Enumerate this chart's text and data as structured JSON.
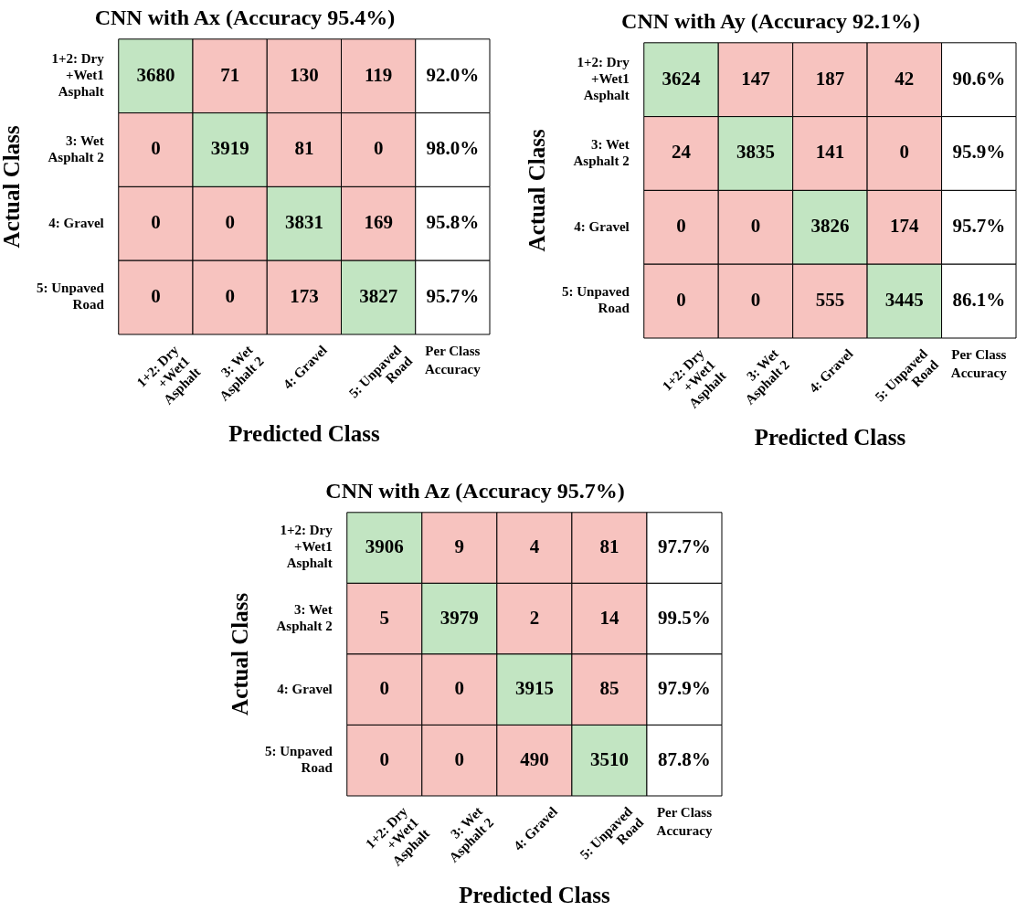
{
  "chart_data": [
    {
      "type": "heatmap",
      "title": "CNN with Ax (Accuracy 95.4%)",
      "xlabel": "Predicted Class",
      "ylabel": "Actual Class",
      "categories": [
        "1+2: Dry +Wet1 Asphalt",
        "3: Wet Asphalt 2",
        "4: Gravel",
        "5: Unpaved Road"
      ],
      "y_categories": [
        "1+2: Dry +Wet1 Asphalt",
        "3: Wet Asphalt 2",
        "4: Gravel",
        "5: Unpaved Road"
      ],
      "y2_categories": [
        "92.0%",
        "98.0%",
        "95.8%",
        "95.7%"
      ],
      "annotations": [
        "Per Class Accuracy"
      ],
      "data_labels": true,
      "cells": [
        [
          3680,
          71,
          130,
          119
        ],
        [
          0,
          3919,
          81,
          0
        ],
        [
          0,
          0,
          3831,
          169
        ],
        [
          0,
          0,
          173,
          3827
        ]
      ]
    },
    {
      "type": "heatmap",
      "title": "CNN with Ay (Accuracy 92.1%)",
      "xlabel": "Predicted Class",
      "ylabel": "Actual Class",
      "categories": [
        "1+2: Dry +Wet1 Asphalt",
        "3: Wet Asphalt 2",
        "4: Gravel",
        "5: Unpaved Road"
      ],
      "y_categories": [
        "1+2: Dry +Wet1 Asphalt",
        "3: Wet Asphalt 2",
        "4: Gravel",
        "5: Unpaved Road"
      ],
      "y2_categories": [
        "90.6%",
        "95.9%",
        "95.7%",
        "86.1%"
      ],
      "annotations": [
        "Per Class Accuracy"
      ],
      "data_labels": true,
      "cells": [
        [
          3624,
          147,
          187,
          42
        ],
        [
          24,
          3835,
          141,
          0
        ],
        [
          0,
          0,
          3826,
          174
        ],
        [
          0,
          0,
          555,
          3445
        ]
      ]
    },
    {
      "type": "heatmap",
      "title": "CNN with Az (Accuracy 95.7%)",
      "xlabel": "Predicted Class",
      "ylabel": "Actual Class",
      "categories": [
        "1+2: Dry +Wet1 Asphalt",
        "3: Wet Asphalt 2",
        "4: Gravel",
        "5: Unpaved Road"
      ],
      "y_categories": [
        "1+2: Dry +Wet1 Asphalt",
        "3: Wet Asphalt 2",
        "4: Gravel",
        "5: Unpaved Road"
      ],
      "y2_categories": [
        "97.7%",
        "99.5%",
        "97.9%",
        "87.8%"
      ],
      "annotations": [
        "Per Class Accuracy"
      ],
      "data_labels": true,
      "cells": [
        [
          3906,
          9,
          4,
          81
        ],
        [
          5,
          3979,
          2,
          14
        ],
        [
          0,
          0,
          3915,
          85
        ],
        [
          0,
          0,
          490,
          3510
        ]
      ]
    }
  ]
}
